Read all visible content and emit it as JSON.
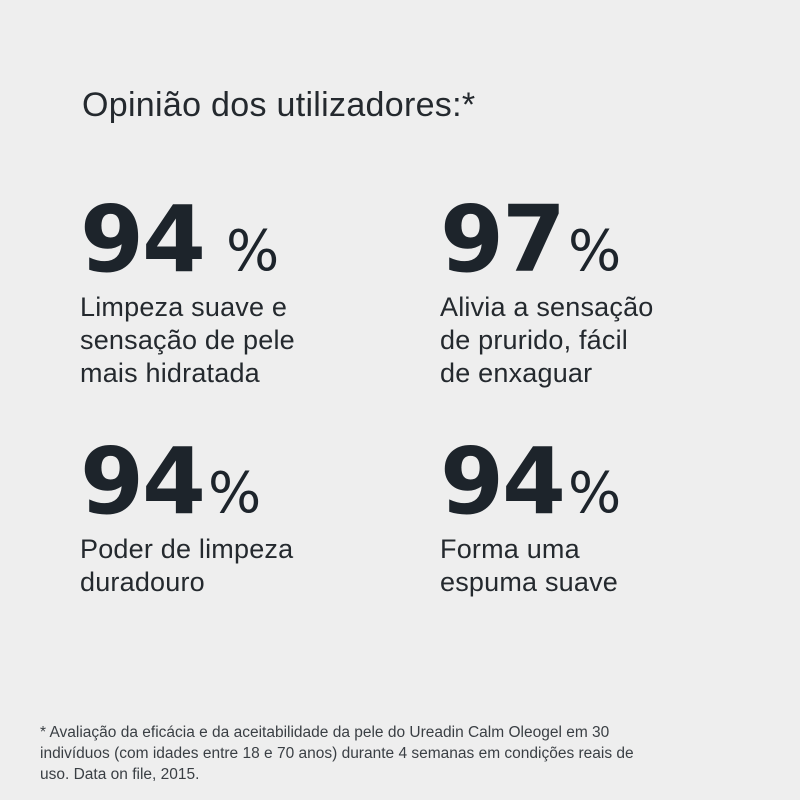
{
  "heading": "Opinião dos utilizadores:*",
  "stats": [
    {
      "value": "94",
      "unit": "%",
      "description_lines": [
        "Limpeza suave e",
        "sensação de pele",
        "mais hidratada"
      ]
    },
    {
      "value": "97",
      "unit": "%",
      "description_lines": [
        "Alivia a sensação",
        "de prurido, fácil",
        "de enxaguar"
      ]
    },
    {
      "value": "94",
      "unit": "%",
      "description_lines": [
        "Poder de limpeza",
        "duradouro"
      ]
    },
    {
      "value": "94",
      "unit": "%",
      "description_lines": [
        "Forma uma",
        "espuma suave"
      ]
    }
  ],
  "footnote_lines": [
    "* Avaliação da eficácia e da aceitabilidade da pele do Ureadin Calm Oleogel em 30",
    "indivíduos (com idades entre 18 e 70 anos) durante 4 semanas em condições reais de",
    "uso. Data on file, 2015."
  ],
  "colors": {
    "background": "#eeeeee",
    "text": "#1d242b"
  }
}
